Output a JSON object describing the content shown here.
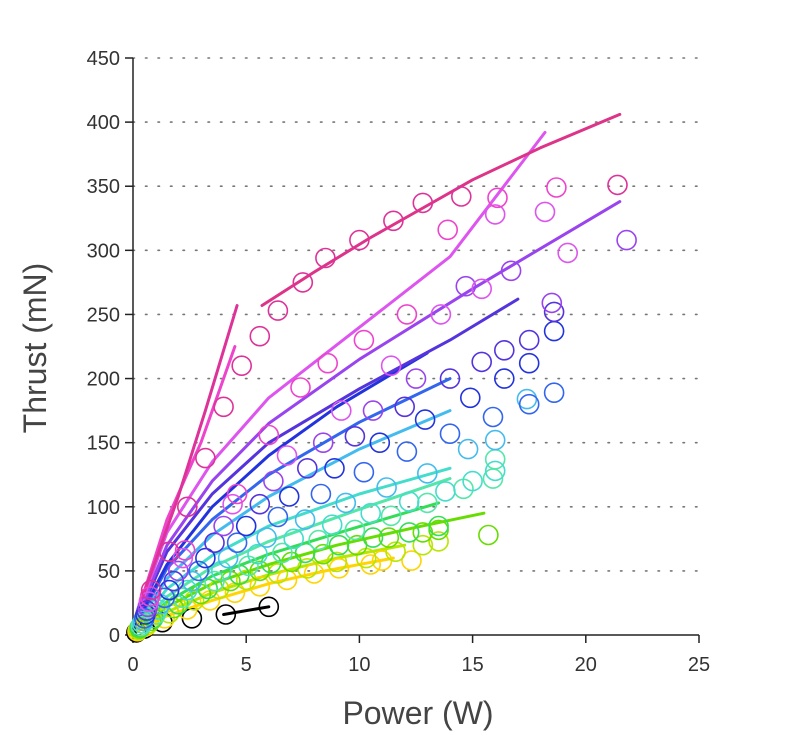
{
  "chart_data": {
    "type": "scatter",
    "title": "",
    "xlabel": "Power (W)",
    "ylabel": "Thrust (mN)",
    "xlim": [
      0,
      25
    ],
    "ylim": [
      0,
      450
    ],
    "xticks": [
      0,
      5,
      10,
      15,
      20,
      25
    ],
    "yticks": [
      0,
      50,
      100,
      150,
      200,
      250,
      300,
      350,
      400,
      450
    ],
    "grid": "horizontal-dotted",
    "series": [
      {
        "color": "#000000",
        "points": [
          [
            0.15,
            2
          ],
          [
            0.5,
            5
          ],
          [
            1.3,
            10
          ],
          [
            2.6,
            13
          ],
          [
            4.1,
            16
          ],
          [
            6.0,
            22
          ]
        ],
        "fit": [
          [
            4.0,
            16
          ],
          [
            6.0,
            22
          ]
        ]
      },
      {
        "color": "#ffd400",
        "points": [
          [
            0.2,
            3
          ],
          [
            0.6,
            7
          ],
          [
            1.4,
            13
          ],
          [
            2.4,
            20
          ],
          [
            3.4,
            27
          ],
          [
            4.5,
            33
          ],
          [
            5.6,
            38
          ],
          [
            6.8,
            43
          ],
          [
            8.0,
            48
          ],
          [
            9.1,
            52
          ],
          [
            10.5,
            55
          ],
          [
            11.0,
            58
          ],
          [
            12.3,
            58
          ]
        ],
        "fit": [
          [
            0.1,
            2
          ],
          [
            1.5,
            15
          ],
          [
            3.5,
            27
          ],
          [
            6,
            40
          ],
          [
            8.5,
            50
          ],
          [
            11.5,
            60
          ]
        ]
      },
      {
        "color": "#b8e600",
        "points": [
          [
            0.25,
            4
          ],
          [
            0.7,
            9
          ],
          [
            1.6,
            17
          ],
          [
            2.7,
            27
          ],
          [
            3.8,
            36
          ],
          [
            5.0,
            43
          ],
          [
            6.4,
            48
          ],
          [
            7.7,
            52
          ],
          [
            9.0,
            57
          ],
          [
            10.3,
            60
          ],
          [
            11.6,
            65
          ],
          [
            12.8,
            70
          ],
          [
            13.5,
            73
          ]
        ],
        "fit": [
          [
            0.1,
            2
          ],
          [
            1.5,
            18
          ],
          [
            3.5,
            33
          ],
          [
            6,
            47
          ],
          [
            9,
            60
          ],
          [
            12,
            70
          ]
        ]
      },
      {
        "color": "#66dd00",
        "points": [
          [
            0.3,
            5
          ],
          [
            0.8,
            11
          ],
          [
            1.8,
            21
          ],
          [
            3.0,
            32
          ],
          [
            4.3,
            42
          ],
          [
            5.6,
            50
          ],
          [
            7.0,
            57
          ],
          [
            8.4,
            63
          ],
          [
            9.9,
            70
          ],
          [
            11.3,
            76
          ],
          [
            12.8,
            80
          ],
          [
            13.5,
            82
          ],
          [
            15.7,
            78
          ]
        ],
        "fit": [
          [
            0.1,
            3
          ],
          [
            1.5,
            22
          ],
          [
            3.5,
            40
          ],
          [
            6,
            55
          ],
          [
            9,
            70
          ],
          [
            12.5,
            84
          ],
          [
            15.5,
            95
          ]
        ]
      },
      {
        "color": "#33dd55",
        "points": [
          [
            0.3,
            6
          ],
          [
            0.9,
            13
          ],
          [
            2.0,
            24
          ],
          [
            3.3,
            36
          ],
          [
            4.7,
            47
          ],
          [
            6.1,
            56
          ],
          [
            7.6,
            64
          ],
          [
            9.1,
            70
          ],
          [
            10.6,
            76
          ],
          [
            12.2,
            80
          ],
          [
            13.5,
            85
          ]
        ],
        "fit": [
          [
            0.1,
            4
          ],
          [
            1.5,
            26
          ],
          [
            3.5,
            46
          ],
          [
            6,
            63
          ],
          [
            9.5,
            82
          ],
          [
            13.5,
            103
          ]
        ]
      },
      {
        "color": "#55e6aa",
        "points": [
          [
            0.35,
            7
          ],
          [
            1.0,
            16
          ],
          [
            2.2,
            29
          ],
          [
            3.6,
            42
          ],
          [
            5.1,
            54
          ],
          [
            6.6,
            64
          ],
          [
            8.2,
            74
          ],
          [
            9.8,
            82
          ],
          [
            11.4,
            93
          ],
          [
            13.0,
            103
          ],
          [
            14.6,
            114
          ],
          [
            15.9,
            122
          ],
          [
            16.0,
            137
          ]
        ],
        "fit": [
          [
            0.1,
            4
          ],
          [
            1.5,
            30
          ],
          [
            3.5,
            53
          ],
          [
            6,
            73
          ],
          [
            10,
            98
          ],
          [
            14,
            122
          ]
        ]
      },
      {
        "color": "#44ddcc",
        "points": [
          [
            0.4,
            9
          ],
          [
            1.1,
            20
          ],
          [
            2.4,
            35
          ],
          [
            3.9,
            50
          ],
          [
            5.5,
            63
          ],
          [
            7.1,
            75
          ],
          [
            8.8,
            86
          ],
          [
            10.5,
            95
          ],
          [
            12.2,
            104
          ],
          [
            13.8,
            112
          ],
          [
            15.0,
            120
          ],
          [
            16.0,
            128
          ]
        ],
        "fit": [
          [
            0.1,
            5
          ],
          [
            1.5,
            36
          ],
          [
            3.5,
            62
          ],
          [
            6,
            85
          ],
          [
            10,
            110
          ],
          [
            14,
            130
          ]
        ]
      },
      {
        "color": "#44bbee",
        "points": [
          [
            0.45,
            11
          ],
          [
            1.2,
            24
          ],
          [
            2.6,
            42
          ],
          [
            4.2,
            60
          ],
          [
            5.9,
            76
          ],
          [
            7.6,
            90
          ],
          [
            9.4,
            103
          ],
          [
            11.2,
            115
          ],
          [
            13.0,
            126
          ],
          [
            14.8,
            145
          ],
          [
            16.0,
            152
          ],
          [
            17.4,
            184
          ]
        ],
        "fit": [
          [
            0.1,
            6
          ],
          [
            1.5,
            44
          ],
          [
            3.5,
            78
          ],
          [
            6,
            108
          ],
          [
            10,
            145
          ],
          [
            14,
            175
          ]
        ]
      },
      {
        "color": "#3366ee",
        "points": [
          [
            0.5,
            13
          ],
          [
            1.4,
            29
          ],
          [
            2.9,
            50
          ],
          [
            4.6,
            72
          ],
          [
            6.4,
            92
          ],
          [
            8.3,
            110
          ],
          [
            10.2,
            127
          ],
          [
            12.1,
            143
          ],
          [
            14.0,
            157
          ],
          [
            15.9,
            170
          ],
          [
            17.5,
            180
          ],
          [
            18.6,
            189
          ]
        ],
        "fit": [
          [
            0.1,
            7
          ],
          [
            1.5,
            52
          ],
          [
            3.5,
            90
          ],
          [
            6,
            125
          ],
          [
            10,
            166
          ],
          [
            14,
            200
          ]
        ]
      },
      {
        "color": "#2233dd",
        "points": [
          [
            0.55,
            16
          ],
          [
            1.6,
            35
          ],
          [
            3.2,
            60
          ],
          [
            5.0,
            85
          ],
          [
            6.9,
            108
          ],
          [
            8.9,
            130
          ],
          [
            10.9,
            150
          ],
          [
            12.9,
            168
          ],
          [
            14.9,
            185
          ],
          [
            16.4,
            200
          ],
          [
            17.5,
            212
          ],
          [
            18.6,
            237
          ]
        ],
        "fit": [
          [
            0.1,
            8
          ],
          [
            1.5,
            55
          ],
          [
            3.5,
            100
          ],
          [
            6,
            140
          ],
          [
            9,
            178
          ],
          [
            13,
            220
          ]
        ]
      },
      {
        "color": "#5533dd",
        "points": [
          [
            0.6,
            19
          ],
          [
            1.8,
            42
          ],
          [
            3.6,
            72
          ],
          [
            5.6,
            102
          ],
          [
            7.7,
            130
          ],
          [
            9.8,
            155
          ],
          [
            12.0,
            178
          ],
          [
            14.0,
            200
          ],
          [
            15.4,
            213
          ],
          [
            16.4,
            222
          ],
          [
            17.5,
            230
          ],
          [
            18.6,
            252
          ]
        ],
        "fit": [
          [
            0.1,
            9
          ],
          [
            1.5,
            65
          ],
          [
            3.5,
            110
          ],
          [
            6,
            150
          ],
          [
            10,
            192
          ],
          [
            14,
            230
          ],
          [
            17,
            262
          ]
        ]
      },
      {
        "color": "#9944ee",
        "points": [
          [
            0.65,
            22
          ],
          [
            2.0,
            50
          ],
          [
            4.0,
            85
          ],
          [
            6.2,
            120
          ],
          [
            8.4,
            150
          ],
          [
            10.6,
            175
          ],
          [
            12.5,
            200
          ],
          [
            14.7,
            272
          ],
          [
            16.7,
            284
          ],
          [
            18.5,
            259
          ],
          [
            21.8,
            308
          ]
        ],
        "fit": [
          [
            0.1,
            10
          ],
          [
            1.5,
            70
          ],
          [
            3.5,
            120
          ],
          [
            6,
            165
          ],
          [
            10,
            215
          ],
          [
            15,
            270
          ],
          [
            21.5,
            338
          ]
        ]
      },
      {
        "color": "#dd55ee",
        "points": [
          [
            0.7,
            26
          ],
          [
            2.2,
            60
          ],
          [
            4.4,
            102
          ],
          [
            6.8,
            140
          ],
          [
            9.2,
            175
          ],
          [
            11.4,
            210
          ],
          [
            13.6,
            250
          ],
          [
            15.4,
            270
          ],
          [
            16.0,
            328
          ],
          [
            18.2,
            330
          ],
          [
            19.2,
            298
          ]
        ],
        "fit": [
          [
            0.1,
            11
          ],
          [
            1.5,
            80
          ],
          [
            3.5,
            135
          ],
          [
            6,
            185
          ],
          [
            10,
            240
          ],
          [
            14,
            295
          ],
          [
            18.2,
            392
          ]
        ]
      },
      {
        "color": "#ee44cc",
        "points": [
          [
            0.75,
            30
          ],
          [
            2.3,
            66
          ],
          [
            4.6,
            110
          ],
          [
            6.0,
            156
          ],
          [
            7.4,
            193
          ],
          [
            8.6,
            212
          ],
          [
            10.2,
            230
          ],
          [
            12.1,
            250
          ],
          [
            13.9,
            316
          ],
          [
            16.1,
            341
          ],
          [
            18.7,
            349
          ]
        ],
        "fit": [
          [
            0.1,
            12
          ],
          [
            1.5,
            90
          ],
          [
            3.0,
            150
          ],
          [
            4.5,
            225
          ]
        ]
      },
      {
        "color": "#dd3399",
        "points": [
          [
            0.8,
            35
          ],
          [
            1.6,
            65
          ],
          [
            2.4,
            100
          ],
          [
            3.2,
            138
          ],
          [
            4.0,
            178
          ],
          [
            4.8,
            210
          ],
          [
            5.6,
            233
          ],
          [
            6.4,
            253
          ],
          [
            7.5,
            275
          ],
          [
            8.5,
            294
          ],
          [
            10.0,
            308
          ],
          [
            11.5,
            323
          ],
          [
            12.8,
            337
          ],
          [
            14.5,
            342
          ],
          [
            21.4,
            351
          ]
        ],
        "fit": [
          [
            0.1,
            14
          ],
          [
            1.0,
            58
          ],
          [
            2.0,
            108
          ],
          [
            3.2,
            175
          ],
          [
            4.6,
            257
          ]
        ]
      },
      {
        "color": "#dd3388",
        "points": [],
        "fit": [
          [
            5.7,
            257
          ],
          [
            8,
            283
          ],
          [
            10.5,
            310
          ],
          [
            13,
            335
          ],
          [
            15,
            355
          ],
          [
            18,
            380
          ],
          [
            21.5,
            406
          ]
        ]
      }
    ]
  }
}
